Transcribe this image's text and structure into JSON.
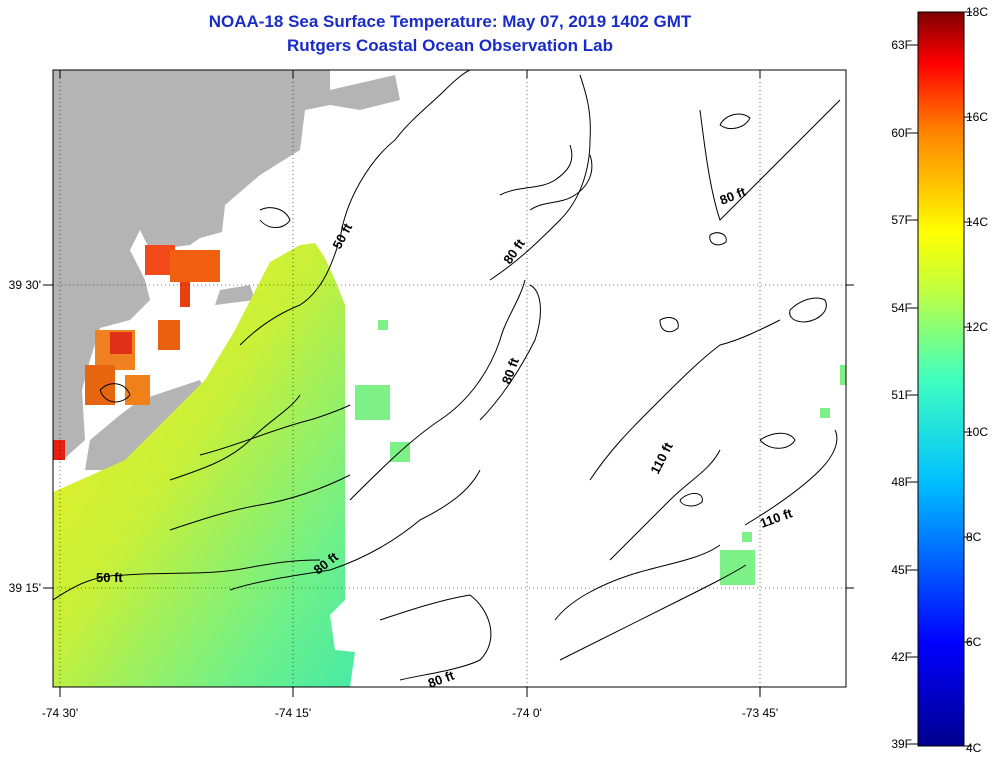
{
  "title": "NOAA-18 Sea Surface Temperature:  May 07, 2019 1402 GMT",
  "subtitle": "Rutgers Coastal Ocean Observation Lab",
  "map": {
    "x_ticks": [
      "-74 30'",
      "-74 15'",
      "-74 0'",
      "-73 45'"
    ],
    "y_ticks": [
      "39 30'",
      "39 15'"
    ],
    "contour_labels": [
      "50 ft",
      "50 ft",
      "80 ft",
      "80 ft",
      "80 ft",
      "80 ft",
      "80 ft",
      "110 ft",
      "110 ft"
    ]
  },
  "colorbar": {
    "celsius": [
      "18C",
      "16C",
      "14C",
      "12C",
      "10C",
      "8C",
      "6C",
      "4C"
    ],
    "fahrenheit": [
      "63F",
      "60F",
      "57F",
      "54F",
      "51F",
      "48F",
      "45F",
      "42F",
      "39F"
    ]
  },
  "colors": {
    "title": "#1a2cc7",
    "land": "#b4b4b4"
  }
}
